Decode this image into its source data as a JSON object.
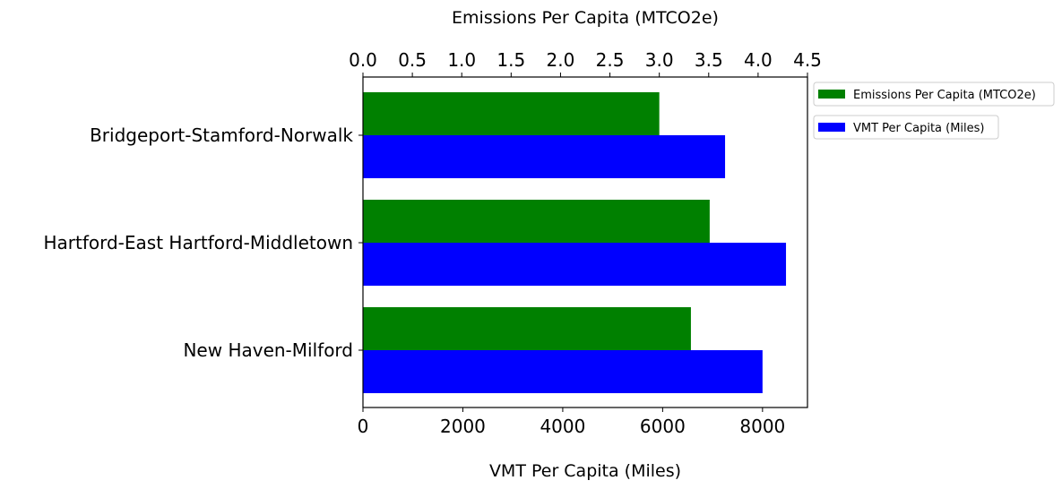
{
  "chart_data": {
    "type": "bar",
    "orientation": "horizontal",
    "categories": [
      "Bridgeport-Stamford-Norwalk",
      "Hartford-East Hartford-Middletown",
      "New Haven-Milford"
    ],
    "series": [
      {
        "name": "Emissions Per Capita (MTCO2e)",
        "axis": "top",
        "color": "#008000",
        "values": [
          3.0,
          3.51,
          3.32
        ]
      },
      {
        "name": "VMT Per Capita (Miles)",
        "axis": "bottom",
        "color": "#0000ff",
        "values": [
          7250,
          8470,
          8000
        ]
      }
    ],
    "top_axis": {
      "label": "Emissions Per Capita (MTCO2e)",
      "range": [
        0,
        4.5
      ],
      "ticks": [
        "0.0",
        "0.5",
        "1.0",
        "1.5",
        "2.0",
        "2.5",
        "3.0",
        "3.5",
        "4.0",
        "4.5"
      ]
    },
    "bottom_axis": {
      "label": "VMT Per Capita (Miles)",
      "range": [
        0,
        8900
      ],
      "ticks": [
        "0",
        "2000",
        "4000",
        "6000",
        "8000"
      ]
    },
    "grid": false,
    "legend_position": "outside-top-right"
  }
}
